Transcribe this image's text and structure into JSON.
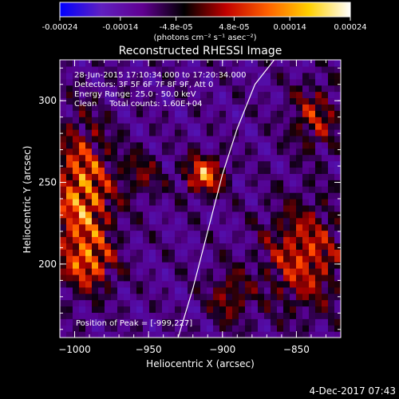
{
  "colorbar": {
    "ticks": [
      "-0.00024",
      "-0.00014",
      "-4.8e-05",
      "4.8e-05",
      "0.00014",
      "0.00024"
    ],
    "tick_values": [
      -0.00024,
      -0.00014,
      -4.8e-05,
      4.8e-05,
      0.00014,
      0.00024
    ],
    "range": [
      -0.00024,
      0.00024
    ],
    "unit_label": "(photons cm⁻² s⁻¹ asec⁻²)",
    "colors": [
      "#0000ff",
      "#6020c0",
      "#600090",
      "#000000",
      "#c00000",
      "#ff6000",
      "#ffd000",
      "#ffffff"
    ]
  },
  "chart_data": {
    "type": "heatmap",
    "title": "Reconstructed RHESSI Image",
    "xlabel": "Heliocentric X (arcsec)",
    "ylabel": "Heliocentric Y (arcsec)",
    "xlim": [
      -1010,
      -820
    ],
    "ylim": [
      155,
      325
    ],
    "xticks": [
      -1000,
      -950,
      -900,
      -850
    ],
    "xtick_labels": [
      "−1000",
      "−950",
      "−900",
      "−850"
    ],
    "yticks": [
      200,
      250,
      300
    ],
    "ytick_labels": [
      "200",
      "250",
      "300"
    ],
    "annotations": [
      "28-Jun-2015 17:10:34.000 to 17:20:34.000",
      "Detectors: 3F 5F 6F 7F 8F 9F, Att 0",
      "Energy Range: 25.0 - 50.0 keV",
      "Clean     Total counts: 1.60E+04"
    ],
    "peak_label": "Position of Peak = [-999,227]",
    "peak": [
      -999,
      227
    ],
    "limb_curve": [
      [
        -930,
        155
      ],
      [
        -920,
        185
      ],
      [
        -910,
        220
      ],
      [
        -900,
        255
      ],
      [
        -890,
        283
      ],
      [
        -878,
        310
      ],
      [
        -865,
        325
      ]
    ],
    "sources": [
      {
        "x": -995,
        "y": 240,
        "amp": 1.0,
        "sx": 14,
        "sy": 30
      },
      {
        "x": -990,
        "y": 200,
        "amp": 0.55,
        "sx": 12,
        "sy": 10
      },
      {
        "x": -912,
        "y": 255,
        "amp": 1.0,
        "sx": 9,
        "sy": 8
      },
      {
        "x": -845,
        "y": 205,
        "amp": 0.75,
        "sx": 18,
        "sy": 22
      },
      {
        "x": -838,
        "y": 290,
        "amp": 0.55,
        "sx": 12,
        "sy": 14
      },
      {
        "x": -955,
        "y": 255,
        "amp": 0.4,
        "sx": 10,
        "sy": 10
      },
      {
        "x": -895,
        "y": 180,
        "amp": 0.5,
        "sx": 10,
        "sy": 12
      }
    ]
  },
  "footer": {
    "timestamp": "4-Dec-2017 07:43"
  }
}
